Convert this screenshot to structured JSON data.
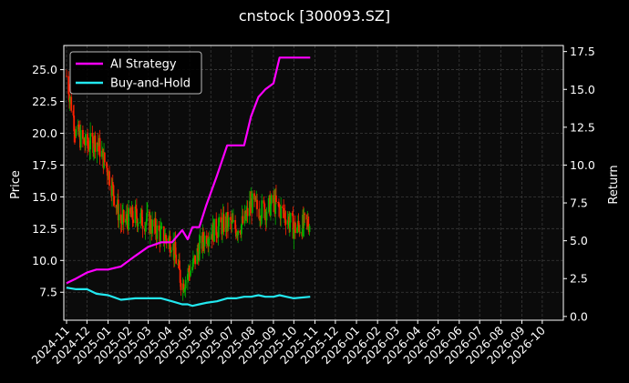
{
  "chart_data": {
    "type": "line",
    "title": "cnstock [300093.SZ]",
    "xlabel": "",
    "ylabel": "Price",
    "y2label": "Return",
    "ylim": [
      5.3,
      26.9
    ],
    "y2lim": [
      -0.25,
      17.9
    ],
    "y_ticks": [
      "7.5",
      "10.0",
      "12.5",
      "15.0",
      "17.5",
      "20.0",
      "22.5",
      "25.0"
    ],
    "y2_ticks": [
      "0.0",
      "2.5",
      "5.0",
      "7.5",
      "10.0",
      "12.5",
      "15.0",
      "17.5"
    ],
    "x_ticks": [
      "2024-11",
      "2024-12",
      "2025-01",
      "2025-02",
      "2025-03",
      "2025-04",
      "2025-05",
      "2025-06",
      "2025-07",
      "2025-08",
      "2025-09",
      "2025-10",
      "2025-11",
      "2025-12",
      "2026-01",
      "2026-02",
      "2026-03",
      "2026-04",
      "2026-05",
      "2026-06",
      "2026-07",
      "2026-08",
      "2026-09",
      "2026-10"
    ],
    "grid": true,
    "legend_position": "top-left",
    "series": [
      {
        "name": "AI Strategy",
        "axis": "right",
        "color": "#ff00ff",
        "x": [
          "2024-11-01",
          "2024-11-15",
          "2024-12-01",
          "2024-12-15",
          "2025-01-01",
          "2025-01-20",
          "2025-02-10",
          "2025-03-01",
          "2025-03-20",
          "2025-04-05",
          "2025-04-20",
          "2025-04-28",
          "2025-05-05",
          "2025-05-15",
          "2025-05-25",
          "2025-06-10",
          "2025-06-25",
          "2025-07-08",
          "2025-07-20",
          "2025-07-30",
          "2025-08-10",
          "2025-08-20",
          "2025-09-01",
          "2025-09-10",
          "2025-09-20",
          "2025-10-01",
          "2025-10-25"
        ],
        "values": [
          2.2,
          2.5,
          2.9,
          3.1,
          3.1,
          3.3,
          4.0,
          4.6,
          4.9,
          4.9,
          5.7,
          5.1,
          5.9,
          5.9,
          7.3,
          9.3,
          11.3,
          11.3,
          11.3,
          13.2,
          14.5,
          15.0,
          15.4,
          17.1,
          17.1,
          17.1,
          17.1
        ]
      },
      {
        "name": "Buy-and-Hold",
        "axis": "right",
        "color": "#22e8f0",
        "x": [
          "2024-11-01",
          "2024-11-15",
          "2024-12-01",
          "2024-12-15",
          "2025-01-01",
          "2025-01-20",
          "2025-02-10",
          "2025-03-01",
          "2025-03-20",
          "2025-04-05",
          "2025-04-20",
          "2025-04-28",
          "2025-05-05",
          "2025-05-15",
          "2025-05-25",
          "2025-06-10",
          "2025-06-25",
          "2025-07-08",
          "2025-07-20",
          "2025-07-30",
          "2025-08-10",
          "2025-08-20",
          "2025-09-01",
          "2025-09-10",
          "2025-09-20",
          "2025-10-01",
          "2025-10-25"
        ],
        "values": [
          1.9,
          1.8,
          1.8,
          1.5,
          1.4,
          1.1,
          1.2,
          1.2,
          1.2,
          1.0,
          0.8,
          0.8,
          0.7,
          0.8,
          0.9,
          1.0,
          1.2,
          1.2,
          1.3,
          1.3,
          1.4,
          1.3,
          1.3,
          1.4,
          1.3,
          1.2,
          1.3
        ]
      },
      {
        "name": "Price",
        "axis": "left",
        "type": "candlestick",
        "up_color": "#00b000",
        "down_color": "#ff2000",
        "x": [
          "2024-11-01",
          "2024-11-15",
          "2024-12-01",
          "2024-12-15",
          "2025-01-01",
          "2025-01-20",
          "2025-02-10",
          "2025-03-01",
          "2025-03-20",
          "2025-04-05",
          "2025-04-20",
          "2025-04-28",
          "2025-05-05",
          "2025-05-15",
          "2025-05-25",
          "2025-06-10",
          "2025-06-25",
          "2025-07-08",
          "2025-07-20",
          "2025-07-30",
          "2025-08-10",
          "2025-08-20",
          "2025-09-01",
          "2025-09-10",
          "2025-09-20",
          "2025-10-01",
          "2025-10-25"
        ],
        "values": [
          24.5,
          20.0,
          19.0,
          19.5,
          17.0,
          13.0,
          13.5,
          13.0,
          12.0,
          11.5,
          8.0,
          9.0,
          9.5,
          11.0,
          12.0,
          12.5,
          13.0,
          12.5,
          13.0,
          14.5,
          14.0,
          14.0,
          14.5,
          14.0,
          13.5,
          12.5,
          13.0
        ]
      }
    ]
  }
}
